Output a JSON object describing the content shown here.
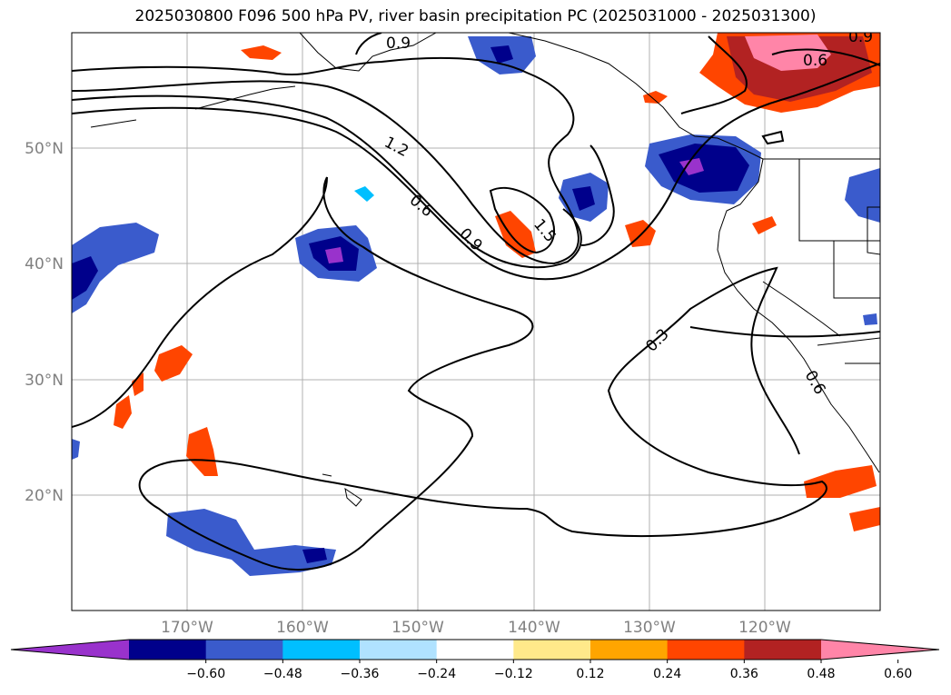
{
  "title": "2025030800 F096 500 hPa PV, river basin precipitation PC (2025031000 - 2025031300)",
  "map": {
    "lon_ticks": [
      "170°W",
      "160°W",
      "150°W",
      "140°W",
      "130°W",
      "120°W"
    ],
    "lat_ticks": [
      "50°N",
      "40°N",
      "30°N",
      "20°N"
    ],
    "contour_labels": [
      "0.9",
      "0.6",
      "0.9",
      "1.2",
      "0.6",
      "0.9",
      "1.5",
      "0.3",
      "0.6"
    ]
  },
  "colorbar": {
    "ticks": [
      "−0.60",
      "−0.48",
      "−0.36",
      "−0.24",
      "−0.12",
      "0.12",
      "0.24",
      "0.36",
      "0.48",
      "0.60"
    ],
    "colors": [
      "#9932cc",
      "#00008b",
      "#3a5bcc",
      "#00bfff",
      "#b0e2ff",
      "#ffffff",
      "#ffe98a",
      "#ffa500",
      "#ff4500",
      "#b22222",
      "#ff85a8"
    ]
  }
}
